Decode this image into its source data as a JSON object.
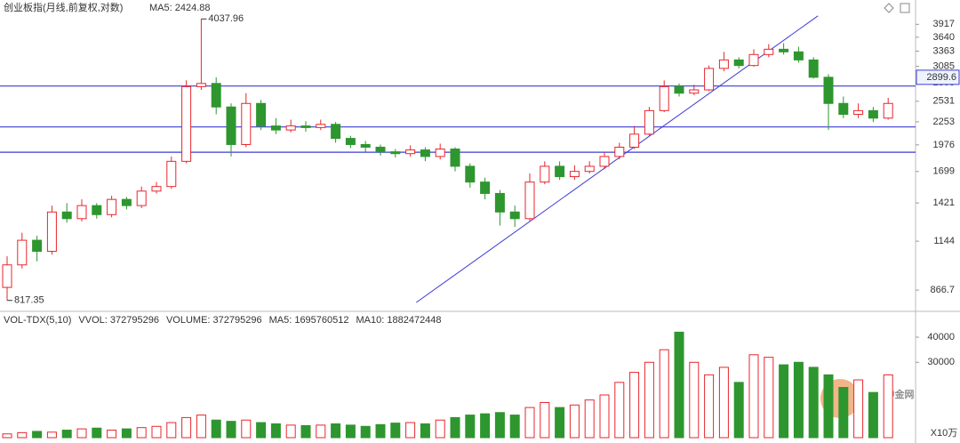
{
  "chart_data": {
    "type": "candlestick",
    "title": "创业板指(月线,前复权,对数)",
    "ma_label": "MA5: 2424.88",
    "log_scale": true,
    "ylim": [
      776,
      4232
    ],
    "yticks": [
      866.7,
      1144,
      1421,
      1699,
      1976,
      2253,
      2531,
      2808,
      3085,
      3363,
      3640,
      3917
    ],
    "up_color": "#e8262d",
    "down_color": "#2e962e",
    "open": [
      880,
      1000,
      1150,
      1080,
      1350,
      1300,
      1400,
      1330,
      1450,
      1400,
      1520,
      1560,
      1800,
      2750,
      2800,
      2450,
      1980,
      2500,
      2200,
      2150,
      2200,
      2180,
      2220,
      2050,
      1980,
      1950,
      1900,
      1880,
      1920,
      1850,
      1930,
      1750,
      1600,
      1500,
      1350,
      1300,
      1600,
      1750,
      1650,
      1700,
      1750,
      1850,
      1950,
      2100,
      2400,
      2750,
      2650,
      2700,
      3050,
      3200,
      3100,
      3300,
      3400,
      3350,
      3200,
      2900,
      2500,
      2350,
      2400,
      2300
    ],
    "high": [
      1050,
      1200,
      1180,
      1400,
      1420,
      1450,
      1420,
      1480,
      1470,
      1560,
      1600,
      1850,
      2850,
      4037.96,
      2900,
      2500,
      2650,
      2550,
      2300,
      2280,
      2260,
      2280,
      2250,
      2080,
      2020,
      1980,
      1930,
      1970,
      1950,
      1990,
      1950,
      1780,
      1640,
      1530,
      1400,
      1680,
      1800,
      1800,
      1760,
      1800,
      1900,
      2000,
      2200,
      2450,
      2850,
      2800,
      2780,
      3100,
      3350,
      3250,
      3400,
      3500,
      3520,
      3450,
      3250,
      2950,
      2600,
      2500,
      2450,
      2580
    ],
    "low": [
      817.35,
      980,
      1020,
      1060,
      1270,
      1280,
      1300,
      1310,
      1370,
      1380,
      1500,
      1540,
      1780,
      2700,
      2350,
      1850,
      1950,
      2150,
      2100,
      2120,
      2130,
      2150,
      2000,
      1940,
      1900,
      1860,
      1840,
      1850,
      1800,
      1820,
      1700,
      1550,
      1450,
      1250,
      1240,
      1280,
      1580,
      1620,
      1620,
      1680,
      1720,
      1820,
      1930,
      2080,
      2380,
      2600,
      2620,
      2680,
      3000,
      3050,
      3080,
      3250,
      3300,
      3150,
      2880,
      2150,
      2300,
      2300,
      2250,
      2280
    ],
    "close": [
      1000,
      1150,
      1080,
      1350,
      1300,
      1400,
      1330,
      1450,
      1400,
      1520,
      1560,
      1800,
      2750,
      2800,
      2450,
      1980,
      2500,
      2200,
      2150,
      2200,
      2180,
      2220,
      2050,
      1980,
      1950,
      1900,
      1880,
      1920,
      1850,
      1930,
      1750,
      1600,
      1500,
      1350,
      1300,
      1600,
      1750,
      1650,
      1700,
      1750,
      1850,
      1950,
      2100,
      2400,
      2750,
      2650,
      2700,
      3050,
      3200,
      3100,
      3300,
      3400,
      3350,
      3200,
      2900,
      2500,
      2350,
      2400,
      2300,
      2500
    ],
    "annotations": [
      {
        "text": "4037.96",
        "index": 13,
        "value": 4037.96
      },
      {
        "text": "817.35",
        "index": 0,
        "value": 817.35
      }
    ],
    "hlines": [
      2760,
      2188,
      1895
    ],
    "hline_color": "#3b3bd6",
    "trendline": {
      "start": [
        27.4,
        808
      ],
      "end": [
        54.3,
        4110
      ]
    },
    "price_label": {
      "text": "2899.6",
      "value": 2899.6
    },
    "volume": {
      "header": [
        "VOL-TDX(5,10)",
        "VVOL: 372795296",
        "VOLUME: 372795296",
        "MA5: 1695760512",
        "MA10: 1882472448"
      ],
      "header_colors": [
        "#333333",
        "#333333",
        "#1f8fd0",
        "#1f8fd0",
        "#a0309a"
      ],
      "unit": "X10万",
      "ylim": [
        0,
        43200
      ],
      "yticks": [
        30000,
        40000
      ],
      "values": [
        1500,
        2000,
        2500,
        2200,
        3000,
        3500,
        3800,
        3000,
        3500,
        4000,
        4500,
        6000,
        8000,
        9000,
        7000,
        6500,
        7000,
        6000,
        5500,
        5000,
        4800,
        5000,
        5500,
        5000,
        4500,
        5200,
        5800,
        6000,
        5500,
        7000,
        8000,
        9000,
        9500,
        10000,
        9000,
        12000,
        14000,
        12000,
        13000,
        15000,
        17000,
        22000,
        26000,
        30000,
        35000,
        42000,
        30000,
        25000,
        28000,
        22000,
        33000,
        32000,
        29000,
        30000,
        28000,
        25000,
        20000,
        23000,
        18000,
        25000
      ]
    },
    "watermark": "中金网"
  }
}
